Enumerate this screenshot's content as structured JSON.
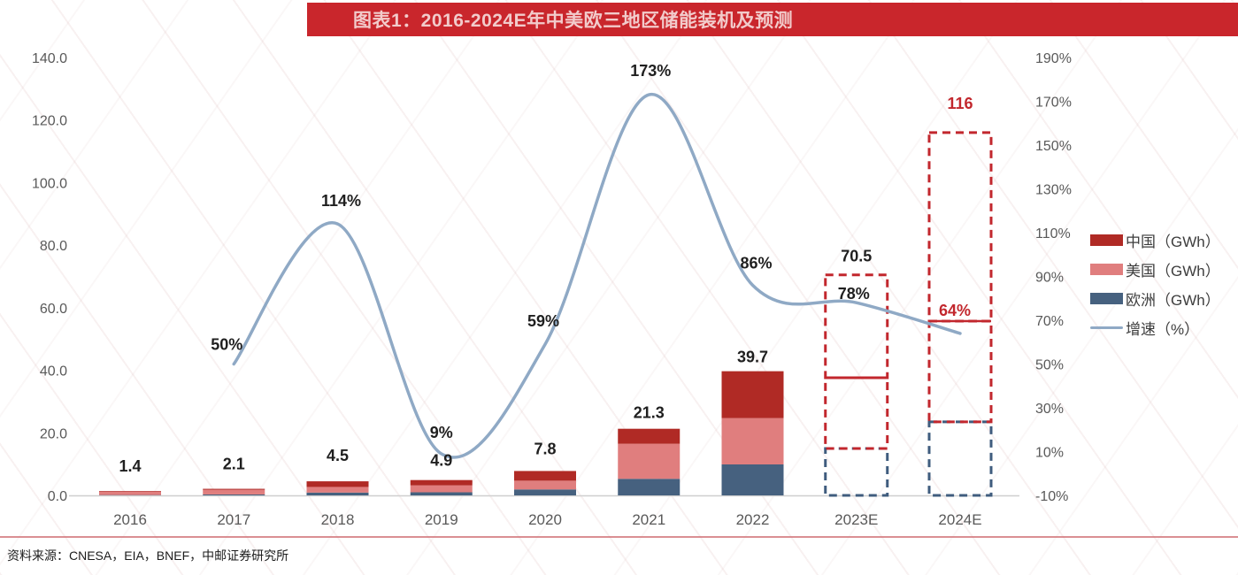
{
  "title": "图表1：2016-2024E年中美欧三地区储能装机及预测",
  "source": "资料来源：CNESA，EIA，BNEF，中邮证券研究所",
  "colors": {
    "banner_bg": "#c9262c",
    "banner_text": "#f2cbcb",
    "china": "#b02a25",
    "us": "#e07e7e",
    "europe": "#46617f",
    "growth_line": "#8fa9c5",
    "accent_red": "#c2272d",
    "axis_text": "#595959",
    "label_text": "#1f1f1f"
  },
  "legend": {
    "items": [
      {
        "label": "中国（GWh）",
        "swatch": "box",
        "color_key": "china"
      },
      {
        "label": "美国（GWh）",
        "swatch": "box",
        "color_key": "us"
      },
      {
        "label": "欧洲（GWh）",
        "swatch": "box",
        "color_key": "europe"
      },
      {
        "label": "增速（%）",
        "swatch": "line",
        "color_key": "growth_line"
      }
    ]
  },
  "chart_data": {
    "type": "bar",
    "subtype": "stacked-bars-with-growth-line",
    "categories": [
      "2016",
      "2017",
      "2018",
      "2019",
      "2020",
      "2021",
      "2022",
      "2023E",
      "2024E"
    ],
    "forecast_categories": [
      "2023E",
      "2024E"
    ],
    "series": [
      {
        "name": "中国（GWh）",
        "color_key": "china",
        "values": [
          0.2,
          0.3,
          1.8,
          1.7,
          3.1,
          4.8,
          15.0,
          32.9,
          60.3
        ]
      },
      {
        "name": "美国（GWh）",
        "color_key": "us",
        "values": [
          1.1,
          1.5,
          1.8,
          2.2,
          2.8,
          11.2,
          14.8,
          22.6,
          32.2
        ]
      },
      {
        "name": "欧洲（GWh）",
        "color_key": "europe",
        "values": [
          0.1,
          0.3,
          0.9,
          1.0,
          1.9,
          5.3,
          9.9,
          15.0,
          23.5
        ]
      }
    ],
    "totals": [
      1.4,
      2.1,
      4.5,
      4.9,
      7.8,
      21.3,
      39.7,
      70.5,
      116
    ],
    "total_labels": [
      "1.4",
      "2.1",
      "4.5",
      "4.9",
      "7.8",
      "21.3",
      "39.7",
      "70.5",
      "116"
    ],
    "growth_series_name": "增速（%）",
    "growth_pct": [
      null,
      50,
      114,
      9,
      59,
      173,
      86,
      78,
      64
    ],
    "growth_labels": [
      null,
      "50%",
      "114%",
      "9%",
      "59%",
      "173%",
      "86%",
      "78%",
      "64%"
    ],
    "highlighted_red_labels": [
      "116",
      "64%"
    ],
    "left_axis": {
      "title": "",
      "min": 0,
      "max": 140,
      "step": 20,
      "ticks": [
        "140.0",
        "120.0",
        "100.0",
        "80.0",
        "60.0",
        "40.0",
        "20.0",
        "0.0"
      ]
    },
    "right_axis": {
      "title": "",
      "min": -10,
      "max": 190,
      "step": 20,
      "ticks": [
        "190%",
        "170%",
        "150%",
        "130%",
        "110%",
        "90%",
        "70%",
        "50%",
        "30%",
        "10%",
        "-10%"
      ]
    },
    "grid": "none",
    "legend_position": "right"
  }
}
